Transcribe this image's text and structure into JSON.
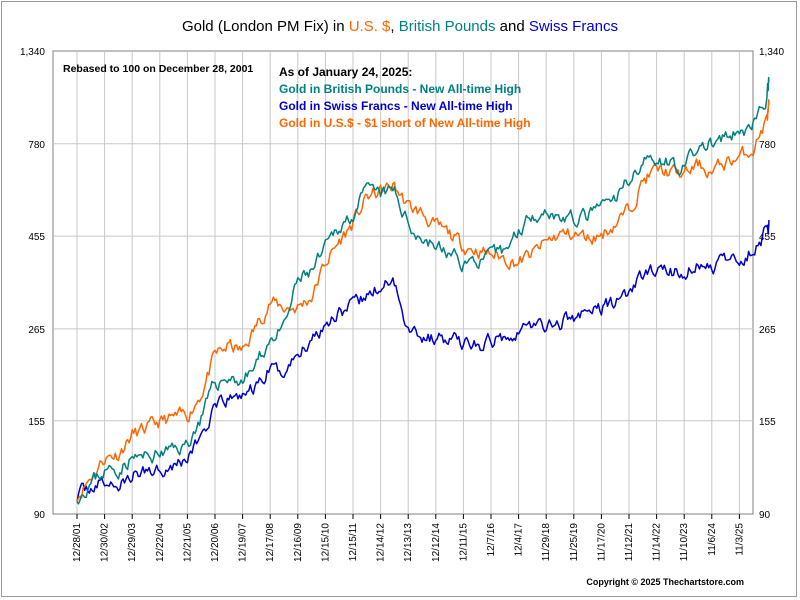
{
  "title": {
    "prefix": "Gold (London PM Fix) in ",
    "usd": "U.S. $",
    "sep1": ", ",
    "gbp": "British Pounds",
    "and": " and ",
    "chf": "Swiss Francs"
  },
  "note": "Rebased to 100 on December 28, 2001",
  "annotation": {
    "heading": "As of January 24, 2025:",
    "gbp": "Gold in British Pounds - New All-time High",
    "chf": "Gold in Swiss Francs - New All-time High",
    "usd": "Gold in U.S.$ - $1 short of New All-time High"
  },
  "copyright": "Copyright © 2025 Thechartstore.com",
  "colors": {
    "usd": "#ff6600",
    "gbp": "#008080",
    "chf": "#0000cc",
    "grid": "#c8c8c8",
    "frame": "#808080"
  },
  "chart_data": {
    "type": "line",
    "yscale": "log",
    "ylim": [
      90,
      1340
    ],
    "yticks": [
      90,
      155,
      265,
      455,
      780,
      1340
    ],
    "ytick_labels": [
      "90",
      "155",
      "265",
      "455",
      "780",
      "1,340"
    ],
    "xticks": [
      "12/28/01",
      "12/30/02",
      "12/29/03",
      "12/22/04",
      "12/21/05",
      "12/20/06",
      "12/19/07",
      "12/17/08",
      "12/16/09",
      "12/15/10",
      "12/15/11",
      "12/14/12",
      "12/13/13",
      "12/12/14",
      "12/11/15",
      "12/7/16",
      "12/4/17",
      "11/29/18",
      "11/25/19",
      "11/17/20",
      "11/12/21",
      "11/14/22",
      "11/10/23",
      "11/6/24",
      "11/3/25"
    ],
    "x_units": "years since 12/28/01",
    "series": [
      {
        "name": "Gold in U.S.$",
        "key": "usd",
        "x": [
          0,
          0.5,
          1,
          1.5,
          2,
          2.5,
          3,
          3.5,
          4,
          4.5,
          5,
          5.5,
          6,
          6.5,
          7,
          7.5,
          8,
          8.5,
          9,
          9.5,
          10,
          10.5,
          11,
          11.5,
          12,
          12.5,
          13,
          13.5,
          14,
          14.5,
          15,
          15.5,
          16,
          16.5,
          17,
          17.5,
          18,
          18.5,
          19,
          19.5,
          20,
          20.5,
          21,
          21.5,
          22,
          22.5,
          23,
          23.5,
          24,
          24.5,
          25,
          25.07
        ],
        "y": [
          100,
          112,
          125,
          128,
          143,
          147,
          154,
          157,
          160,
          182,
          226,
          240,
          232,
          270,
          310,
          300,
          300,
          320,
          390,
          440,
          490,
          570,
          590,
          610,
          540,
          520,
          480,
          460,
          430,
          420,
          410,
          400,
          390,
          410,
          440,
          460,
          460,
          450,
          460,
          490,
          530,
          630,
          670,
          660,
          650,
          690,
          660,
          700,
          720,
          760,
          900,
          980
        ]
      },
      {
        "name": "Gold in British Pounds",
        "key": "gbp",
        "x": [
          0,
          0.5,
          1,
          1.5,
          2,
          2.5,
          3,
          3.5,
          4,
          4.5,
          5,
          5.5,
          6,
          6.5,
          7,
          7.5,
          8,
          8.5,
          9,
          9.5,
          10,
          10.5,
          11,
          11.5,
          12,
          12.5,
          13,
          13.5,
          14,
          14.5,
          15,
          15.5,
          16,
          16.5,
          17,
          17.5,
          18,
          18.5,
          19,
          19.5,
          20,
          20.5,
          21,
          21.5,
          22,
          22.5,
          23,
          23.5,
          24,
          24.5,
          25,
          25.07
        ],
        "y": [
          100,
          108,
          116,
          117,
          125,
          125,
          128,
          131,
          135,
          158,
          192,
          200,
          195,
          215,
          250,
          265,
          350,
          370,
          420,
          480,
          520,
          590,
          580,
          590,
          490,
          450,
          430,
          410,
          390,
          395,
          400,
          420,
          470,
          520,
          530,
          510,
          500,
          510,
          540,
          560,
          640,
          700,
          720,
          700,
          680,
          760,
          780,
          800,
          830,
          870,
          1020,
          1120
        ]
      },
      {
        "name": "Gold in Swiss Francs",
        "key": "chf",
        "x": [
          0,
          0.5,
          1,
          1.5,
          2,
          2.5,
          3,
          3.5,
          4,
          4.5,
          5,
          5.5,
          6,
          6.5,
          7,
          7.5,
          8,
          8.5,
          9,
          9.5,
          10,
          10.5,
          11,
          11.5,
          12,
          12.5,
          13,
          13.5,
          14,
          14.5,
          15,
          15.5,
          16,
          16.5,
          17,
          17.5,
          18,
          18.5,
          19,
          19.5,
          20,
          20.5,
          21,
          21.5,
          22,
          22.5,
          23,
          23.5,
          24,
          24.5,
          25,
          25.07
        ],
        "y": [
          100,
          106,
          108,
          106,
          112,
          116,
          118,
          120,
          125,
          142,
          165,
          175,
          180,
          188,
          210,
          205,
          230,
          250,
          275,
          295,
          300,
          320,
          340,
          345,
          270,
          255,
          250,
          248,
          245,
          240,
          245,
          255,
          265,
          270,
          270,
          275,
          285,
          290,
          300,
          310,
          330,
          360,
          375,
          370,
          365,
          385,
          380,
          390,
          400,
          420,
          470,
          500
        ]
      }
    ]
  }
}
